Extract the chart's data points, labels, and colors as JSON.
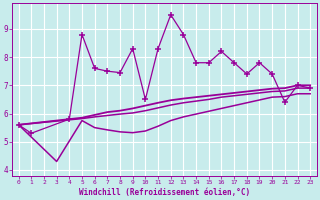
{
  "xlabel": "Windchill (Refroidissement éolien,°C)",
  "xlim": [
    -0.5,
    23.5
  ],
  "ylim": [
    3.8,
    9.9
  ],
  "yticks": [
    4,
    5,
    6,
    7,
    8,
    9
  ],
  "xticks": [
    0,
    1,
    2,
    3,
    4,
    5,
    6,
    7,
    8,
    9,
    10,
    11,
    12,
    13,
    14,
    15,
    16,
    17,
    18,
    19,
    20,
    21,
    22,
    23
  ],
  "background_color": "#c8ecec",
  "grid_color": "#ffffff",
  "line_color": "#990099",
  "series_jagged": {
    "x": [
      0,
      1,
      4,
      5,
      6,
      7,
      8,
      9,
      10,
      11,
      12,
      13,
      14,
      15,
      16,
      17,
      18,
      19,
      20,
      21,
      22,
      23
    ],
    "y": [
      5.6,
      5.3,
      5.8,
      8.8,
      7.6,
      7.5,
      7.45,
      8.3,
      6.5,
      8.3,
      9.5,
      8.8,
      7.8,
      7.8,
      8.2,
      7.8,
      7.4,
      7.8,
      7.4,
      6.4,
      7.0,
      6.9
    ],
    "marker": "+",
    "markersize": 4,
    "linewidth": 0.9
  },
  "series_smooth": [
    {
      "x": [
        0,
        5,
        6,
        7,
        8,
        9,
        10,
        11,
        12,
        13,
        14,
        15,
        16,
        17,
        18,
        19,
        20,
        21,
        22,
        23
      ],
      "y": [
        5.6,
        5.85,
        5.95,
        6.05,
        6.1,
        6.18,
        6.28,
        6.38,
        6.47,
        6.53,
        6.58,
        6.63,
        6.68,
        6.73,
        6.78,
        6.83,
        6.88,
        6.9,
        7.0,
        7.0
      ],
      "linewidth": 1.3
    },
    {
      "x": [
        0,
        5,
        6,
        7,
        8,
        9,
        10,
        11,
        12,
        13,
        14,
        15,
        16,
        17,
        18,
        19,
        20,
        21,
        22,
        23
      ],
      "y": [
        5.6,
        5.82,
        5.88,
        5.93,
        5.98,
        6.02,
        6.1,
        6.2,
        6.3,
        6.38,
        6.44,
        6.5,
        6.58,
        6.63,
        6.68,
        6.73,
        6.78,
        6.8,
        6.9,
        6.9
      ],
      "linewidth": 1.1
    },
    {
      "x": [
        0,
        3,
        5,
        6,
        7,
        8,
        9,
        10,
        11,
        12,
        13,
        14,
        15,
        16,
        17,
        18,
        19,
        20,
        21,
        22,
        23
      ],
      "y": [
        5.6,
        4.3,
        5.75,
        5.5,
        5.42,
        5.35,
        5.32,
        5.38,
        5.55,
        5.75,
        5.88,
        5.98,
        6.08,
        6.18,
        6.28,
        6.38,
        6.48,
        6.58,
        6.6,
        6.7,
        6.7
      ],
      "linewidth": 1.1
    }
  ]
}
